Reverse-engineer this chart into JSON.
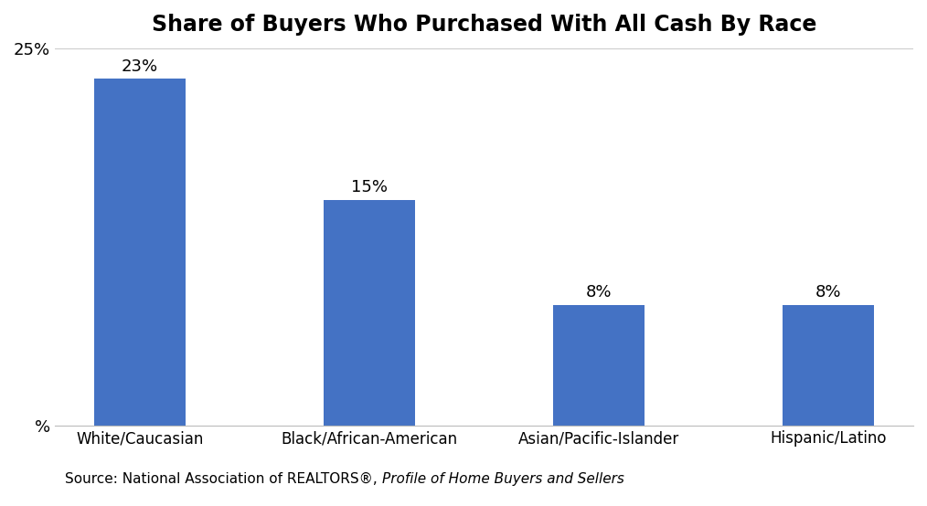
{
  "title": "Share of Buyers Who Purchased With All Cash By Race",
  "categories": [
    "White/Caucasian",
    "Black/African-American",
    "Asian/Pacific-Islander",
    "Hispanic/Latino"
  ],
  "values": [
    23,
    15,
    8,
    8
  ],
  "bar_color": "#4472C4",
  "ylim": [
    0,
    25
  ],
  "yticks": [
    0,
    25
  ],
  "title_fontsize": 17,
  "label_fontsize": 12,
  "tick_fontsize": 13,
  "source_text_normal": "Source: National Association of REALTORS®, ",
  "source_text_italic": "Profile of Home Buyers and Sellers",
  "background_color": "#ffffff",
  "bar_label_fontsize": 13,
  "bar_width": 0.4
}
